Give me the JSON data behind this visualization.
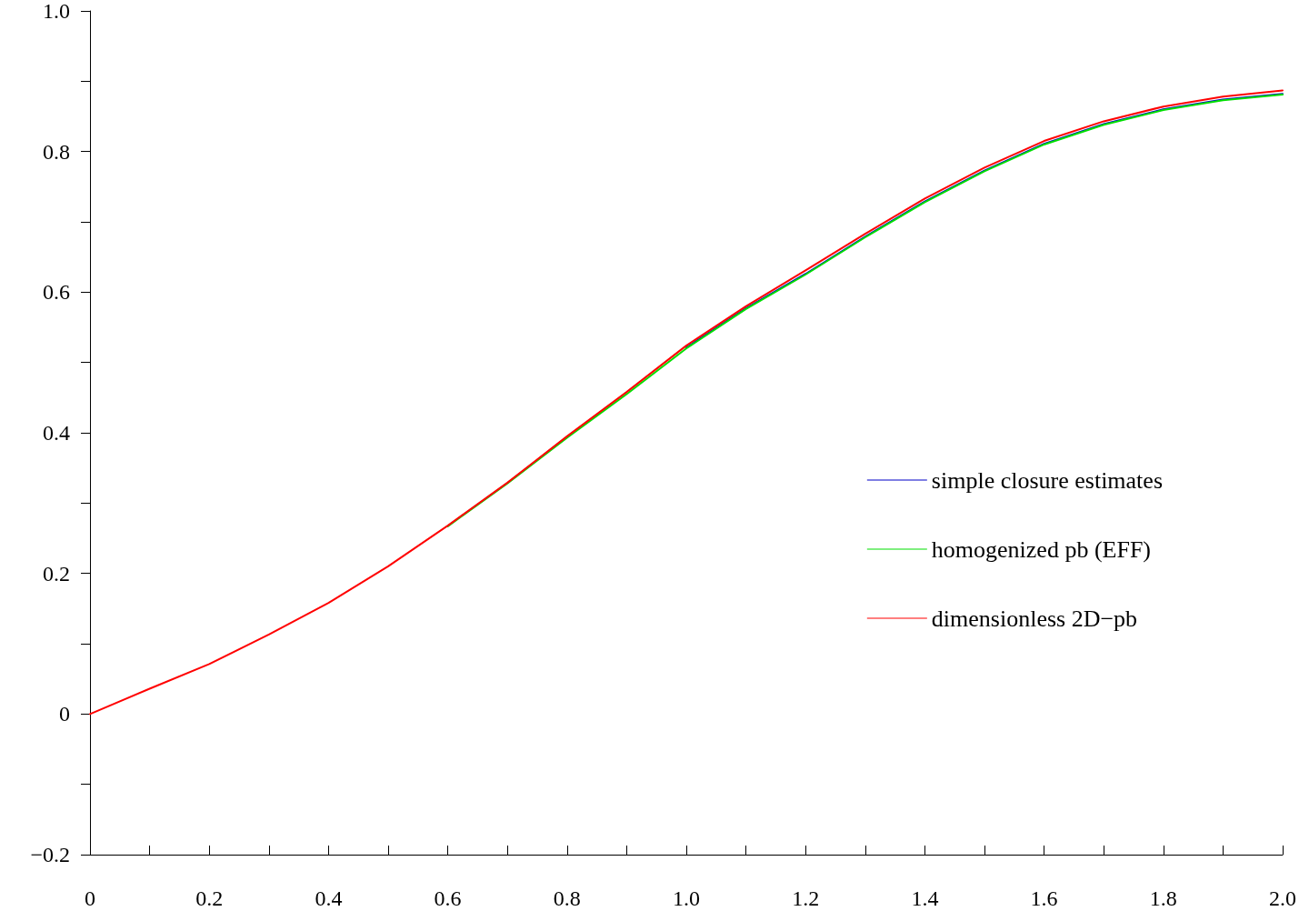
{
  "chart_data": {
    "type": "line",
    "x": [
      0,
      0.1,
      0.2,
      0.3,
      0.4,
      0.5,
      0.6,
      0.7,
      0.8,
      0.9,
      1.0,
      1.1,
      1.2,
      1.3,
      1.4,
      1.5,
      1.6,
      1.7,
      1.8,
      1.9,
      2.0
    ],
    "series": [
      {
        "name": "simple closure estimates",
        "color": "#0000c8",
        "values": [
          null,
          null,
          null,
          null,
          null,
          null,
          null,
          null,
          null,
          null,
          0.521,
          0.577,
          0.626,
          0.679,
          0.729,
          0.773,
          0.811,
          0.839,
          0.86,
          0.874,
          0.882
        ]
      },
      {
        "name": "homogenized pb (EFF)",
        "color": "#00e000",
        "values": [
          null,
          null,
          null,
          null,
          null,
          null,
          0.267,
          0.328,
          0.393,
          0.455,
          0.52,
          0.576,
          0.625,
          0.678,
          0.728,
          0.772,
          0.81,
          0.838,
          0.859,
          0.873,
          0.881
        ]
      },
      {
        "name": "dimensionless 2D−pb",
        "color": "#ff0000",
        "values": [
          0,
          0.036,
          0.071,
          0.113,
          0.158,
          0.21,
          0.268,
          0.329,
          0.395,
          0.458,
          0.524,
          0.58,
          0.631,
          0.683,
          0.733,
          0.777,
          0.815,
          0.843,
          0.864,
          0.878,
          0.887
        ]
      }
    ],
    "xlim": [
      0,
      2.0
    ],
    "xticks": [
      0,
      {
        "value": 0.1,
        "label": null
      },
      0.2,
      {
        "value": 0.3,
        "label": null
      },
      0.4,
      {
        "value": 0.5,
        "label": null
      },
      0.6,
      {
        "value": 0.7,
        "label": null
      },
      0.8,
      {
        "value": 0.9,
        "label": null
      },
      {
        "value": 1.0,
        "label": "1.0"
      },
      {
        "value": 1.1,
        "label": null
      },
      1.2,
      {
        "value": 1.3,
        "label": null
      },
      1.4,
      {
        "value": 1.5,
        "label": null
      },
      1.6,
      {
        "value": 1.7,
        "label": null
      },
      1.8,
      {
        "value": 1.9,
        "label": null
      },
      {
        "value": 2.0,
        "label": "2.0"
      }
    ],
    "ylim": [
      -0.2,
      1.0
    ],
    "yticks": [
      {
        "value": -0.2,
        "label": "−0.2"
      },
      {
        "value": -0.1,
        "label": null
      },
      0,
      {
        "value": 0.1,
        "label": null
      },
      0.2,
      {
        "value": 0.3,
        "label": null
      },
      0.4,
      {
        "value": 0.5,
        "label": null
      },
      0.6,
      {
        "value": 0.7,
        "label": null
      },
      0.8,
      {
        "value": 0.9,
        "label": null
      },
      {
        "value": 1.0,
        "label": "1.0"
      }
    ],
    "grid": false,
    "legend": "right",
    "marker": "none",
    "line_style": "solid"
  }
}
